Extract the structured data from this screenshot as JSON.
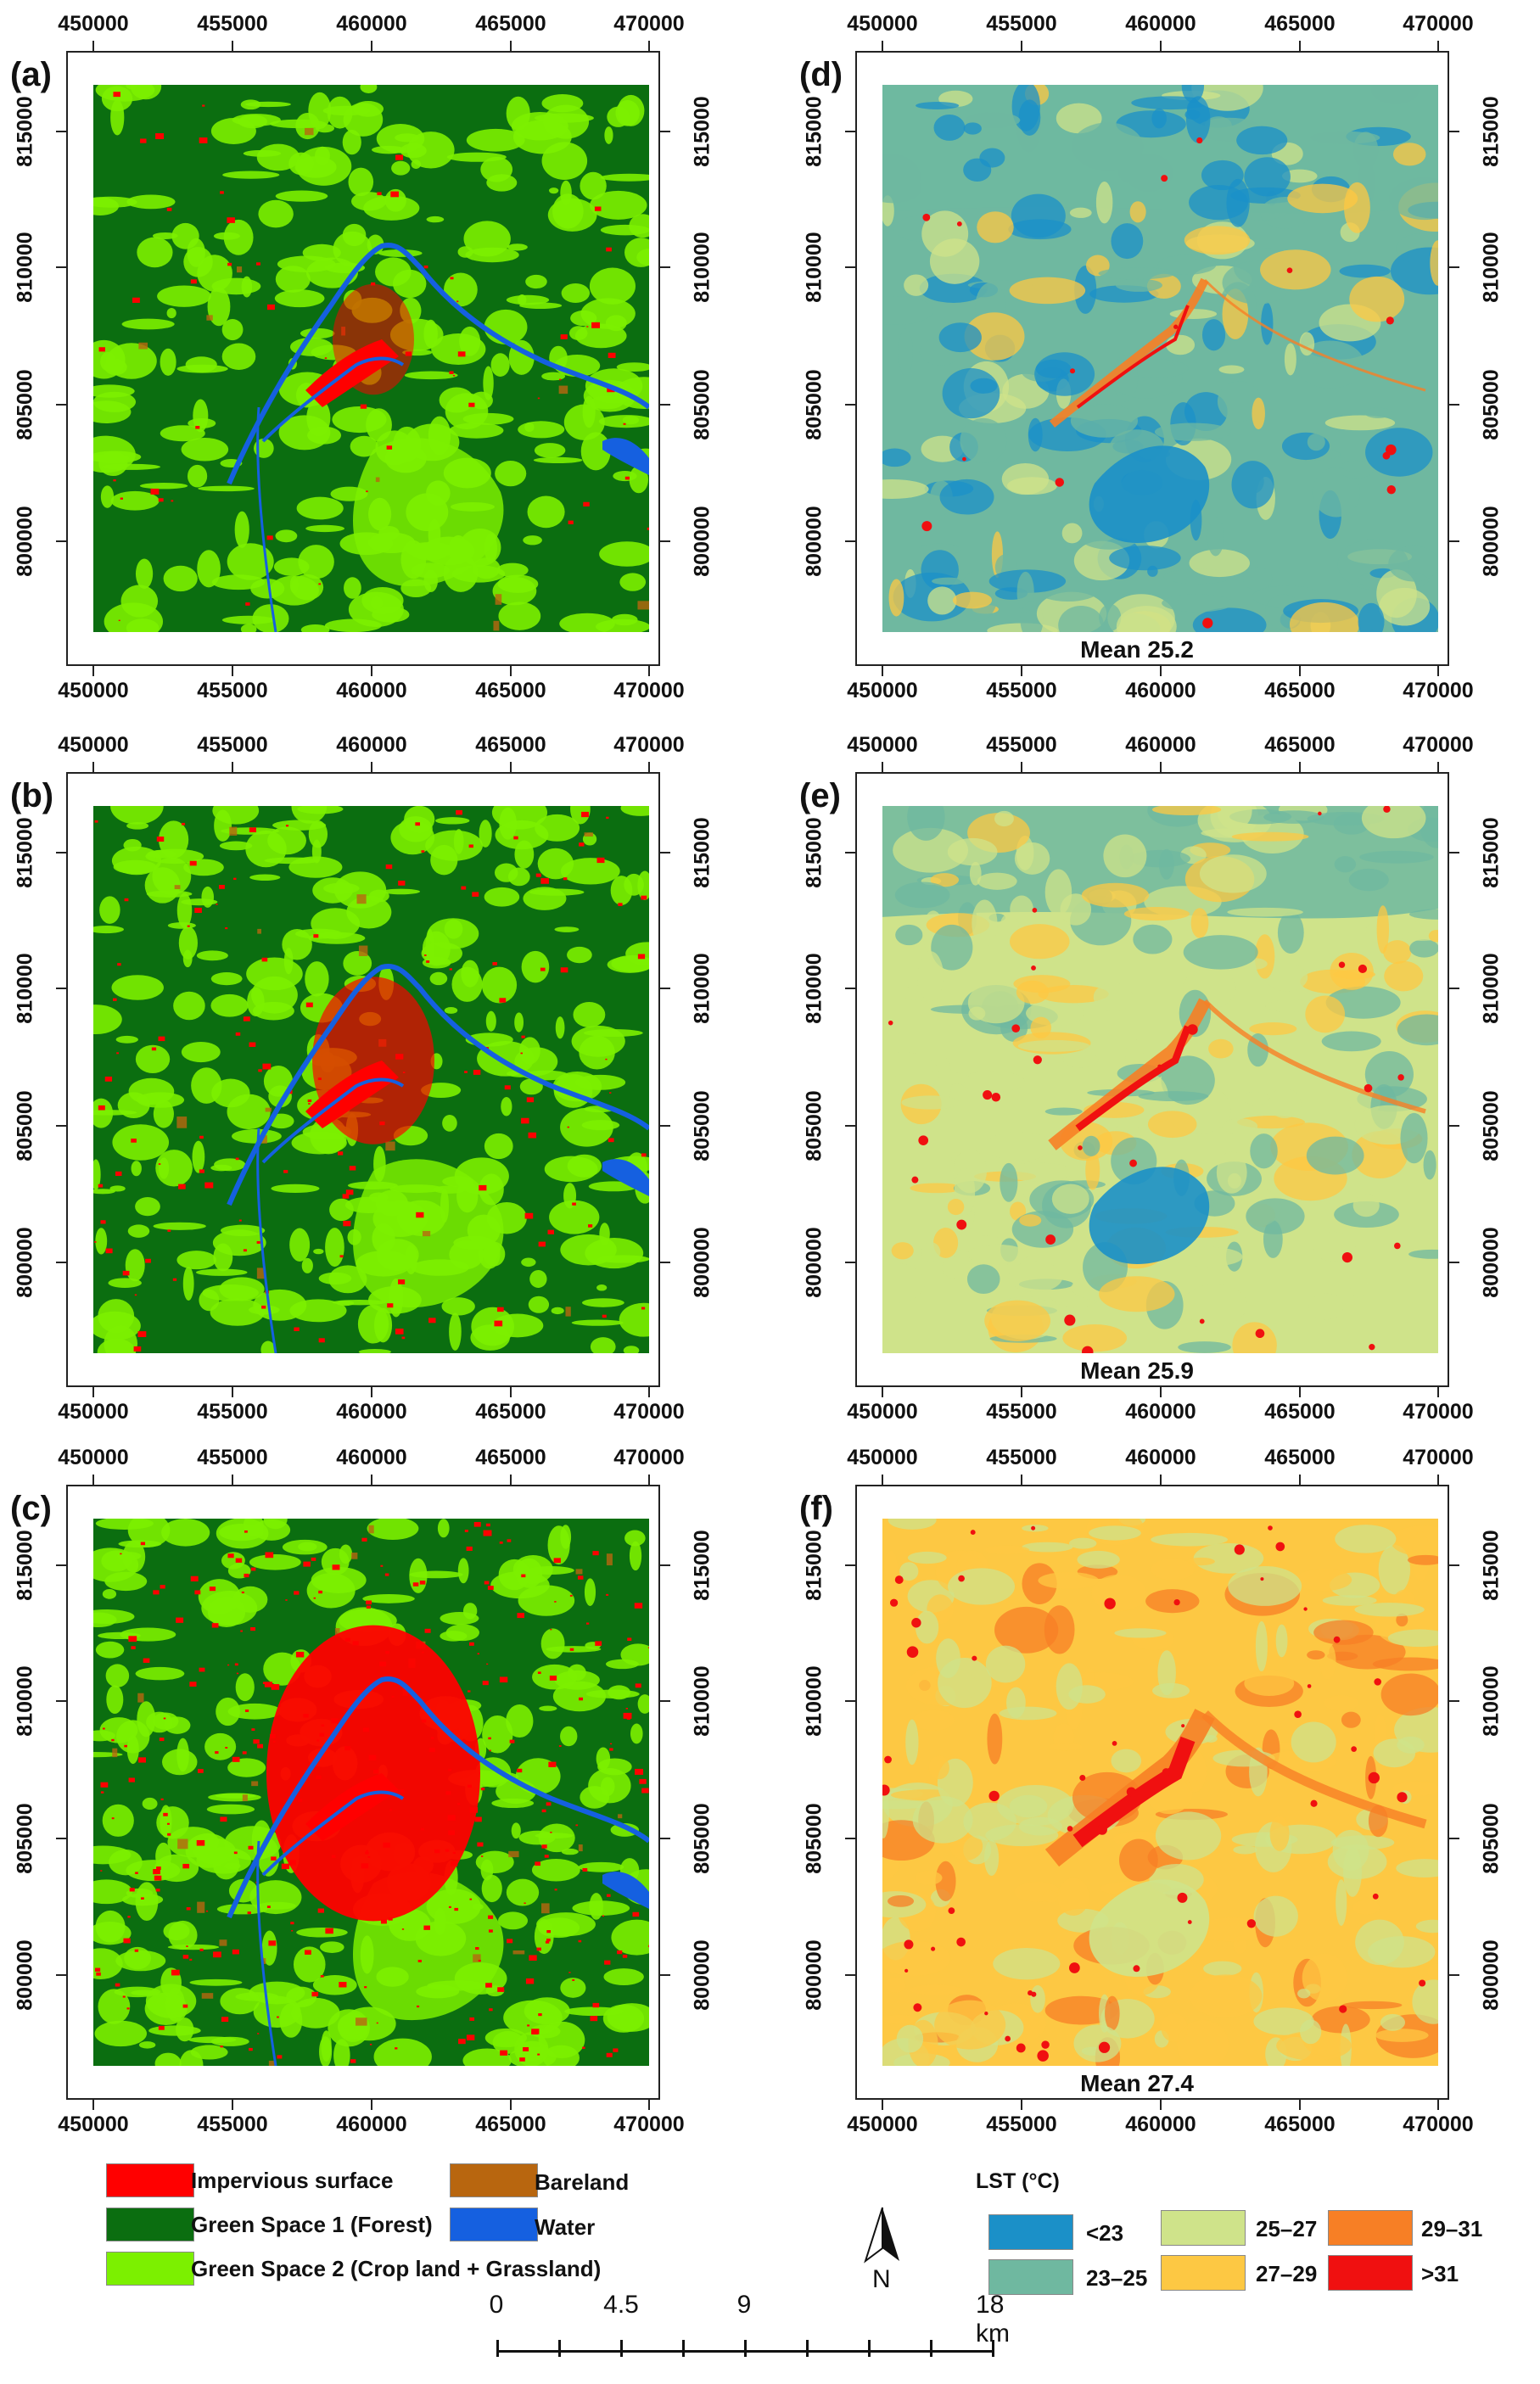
{
  "panels": [
    {
      "id": "a",
      "label": "(a)",
      "type": "landcover",
      "imp": 0.06,
      "seed": 11
    },
    {
      "id": "b",
      "label": "(b)",
      "type": "landcover",
      "imp": 0.14,
      "seed": 23
    },
    {
      "id": "c",
      "label": "(c)",
      "type": "landcover",
      "imp": 0.32,
      "seed": 37
    },
    {
      "id": "d",
      "label": "(d)",
      "type": "lst",
      "mean": "Mean 25.2",
      "level": 25.2,
      "seed": 41
    },
    {
      "id": "e",
      "label": "(e)",
      "type": "lst",
      "mean": "Mean 25.9",
      "level": 25.9,
      "seed": 53
    },
    {
      "id": "f",
      "label": "(f)",
      "type": "lst",
      "mean": "Mean 27.4",
      "level": 27.4,
      "seed": 67
    }
  ],
  "x_ticks": [
    "450000",
    "455000",
    "460000",
    "465000",
    "470000"
  ],
  "y_ticks": [
    "815000",
    "810000",
    "805000",
    "800000"
  ],
  "landcover_legend": {
    "items": [
      {
        "label": "Impervious surface",
        "color": "#ff0000"
      },
      {
        "label": "Green Space 1 (Forest)",
        "color": "#0b6e10"
      },
      {
        "label": "Green Space 2 (Crop land + Grassland)",
        "color": "#7cf000"
      },
      {
        "label": "Bareland",
        "color": "#b8660f"
      },
      {
        "label": "Water",
        "color": "#1560e0"
      }
    ]
  },
  "lst_legend": {
    "title": "LST (°C)",
    "items": [
      {
        "label": "<23",
        "color": "#1b90c8"
      },
      {
        "label": "23–25",
        "color": "#6fb8a0"
      },
      {
        "label": "25–27",
        "color": "#cfe38a"
      },
      {
        "label": "27–29",
        "color": "#fdc843"
      },
      {
        "label": "29–31",
        "color": "#f77f25"
      },
      {
        "label": ">31",
        "color": "#f01010"
      }
    ]
  },
  "north_arrow": {
    "label": "N",
    "icon": "north-arrow-icon"
  },
  "scale_bar": {
    "labels": [
      "0",
      "4.5",
      "9",
      "18 km"
    ]
  }
}
